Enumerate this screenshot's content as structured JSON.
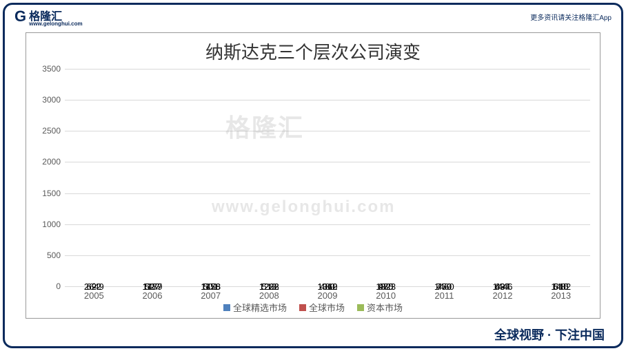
{
  "brand": {
    "logo_letter": "G",
    "logo_name": "格隆汇",
    "logo_sub": "www.gelonghui.com",
    "header_right": "更多资讯请关注格隆汇App",
    "footer": "全球视野 · 下注中国"
  },
  "watermark": {
    "cn": "格隆汇",
    "en": "www.gelonghui.com"
  },
  "chart": {
    "type": "stacked-bar",
    "title": "纳斯达克三个层次公司演变",
    "categories": [
      "2005",
      "2006",
      "2007",
      "2008",
      "2009",
      "2010",
      "2011",
      "2012",
      "2013"
    ],
    "series": [
      {
        "name": "全球精选市场",
        "color": "#4f81bd",
        "values": [
          0,
          1187,
          1156,
          1288,
          1310,
          1323,
          1460,
          1446,
          1482
        ]
      },
      {
        "name": "全球市场",
        "color": "#c0504d",
        "values": [
          2649,
          1479,
          1478,
          1222,
          1062,
          975,
          750,
          634,
          610
        ]
      },
      {
        "name": "资本市场",
        "color": "#9bbb59",
        "values": [
          622,
          527,
          501,
          513,
          480,
          480,
          470,
          497,
          545
        ]
      }
    ],
    "ylim": [
      0,
      3500
    ],
    "ytick_step": 500,
    "grid_color": "#d9d9d9",
    "background_color": "#ffffff",
    "label_fontsize": 13,
    "title_fontsize": 26,
    "bar_width_ratio": 0.55
  }
}
